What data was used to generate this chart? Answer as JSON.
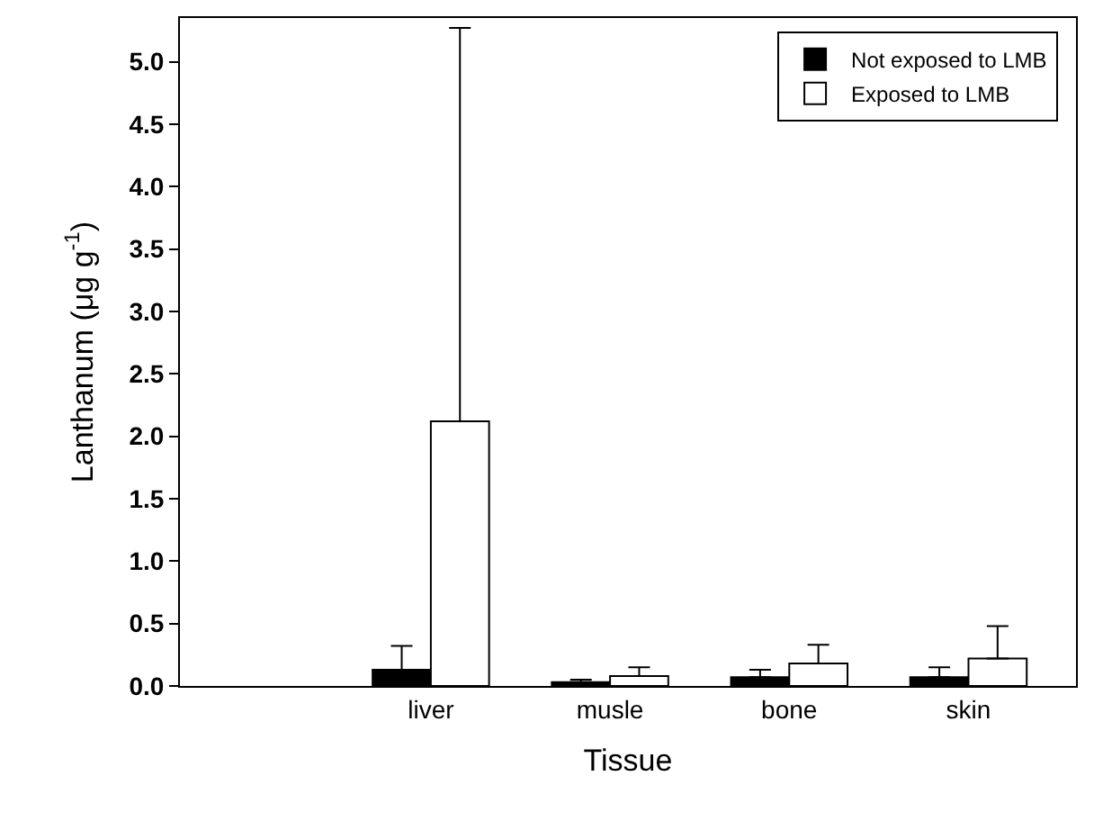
{
  "chart_data": {
    "type": "bar",
    "xlabel": "Tissue",
    "ylabel": "Lanthanum (μg g$^{-1}$)",
    "categories": [
      "liver",
      "musle",
      "bone",
      "skin"
    ],
    "series": [
      {
        "name": "Not exposed to LMB",
        "color": "#000000",
        "values": [
          0.13,
          0.03,
          0.07,
          0.07
        ],
        "errors": [
          [
            0.13,
            0.32
          ],
          [
            0.03,
            0.05
          ],
          [
            0.07,
            0.13
          ],
          [
            0.07,
            0.15
          ]
        ]
      },
      {
        "name": "Exposed to LMB",
        "color": "#ffffff",
        "values": [
          2.12,
          0.08,
          0.18,
          0.22
        ],
        "errors": [
          [
            2.12,
            5.27
          ],
          [
            0.08,
            0.15
          ],
          [
            0.18,
            0.33
          ],
          [
            0.22,
            0.48
          ]
        ]
      }
    ],
    "ylim": [
      0,
      5.35
    ],
    "yticks": [
      {
        "value": 0,
        "label": "0.0"
      },
      {
        "value": 0.5,
        "label": "0.5"
      },
      {
        "value": 1,
        "label": "1.0"
      },
      {
        "value": 1.5,
        "label": "1.5"
      },
      {
        "value": 2,
        "label": "2.0"
      },
      {
        "value": 2.5,
        "label": "2.5"
      },
      {
        "value": 3,
        "label": "3.0"
      },
      {
        "value": 3.5,
        "label": "3.5"
      },
      {
        "value": 4,
        "label": "4.0"
      },
      {
        "value": 4.5,
        "label": "4.5"
      },
      {
        "value": 5,
        "label": "5.0"
      }
    ],
    "legend": "top right"
  }
}
